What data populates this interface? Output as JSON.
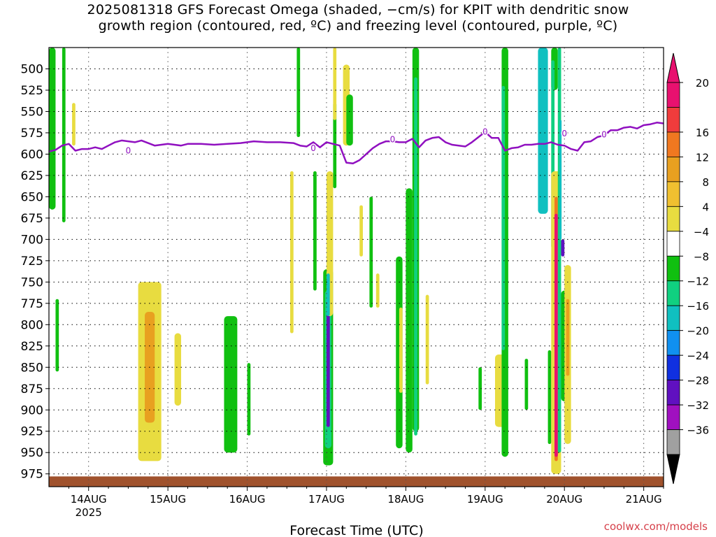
{
  "title_line1": "2025081318 GFS Forecast Omega (shaded, −cm/s) for KPIT with dendritic snow",
  "title_line2": "growth region (contoured, red, ºC) and freezing level (contoured, purple, ºC)",
  "credit": "coolwx.com/models",
  "chart_data": {
    "type": "heatmap",
    "title": "2025081318 GFS Forecast Omega (shaded, −cm/s) for KPIT with dendritic snow growth region (contoured, red, ºC) and freezing level (contoured, purple, ºC)",
    "xlabel": "Forecast Time (UTC)",
    "ylabel": "",
    "x_range_hours": [
      -6,
      180
    ],
    "y_range": [
      475,
      990
    ],
    "y_ticks": [
      500,
      525,
      550,
      575,
      600,
      625,
      650,
      675,
      700,
      725,
      750,
      775,
      800,
      825,
      850,
      875,
      900,
      925,
      950,
      975
    ],
    "x_ticks": [
      {
        "label": "14AUG",
        "sublabel": "2025",
        "hour": 6
      },
      {
        "label": "15AUG",
        "hour": 30
      },
      {
        "label": "16AUG",
        "hour": 54
      },
      {
        "label": "17AUG",
        "hour": 78
      },
      {
        "label": "18AUG",
        "hour": 102
      },
      {
        "label": "19AUG",
        "hour": 126
      },
      {
        "label": "20AUG",
        "hour": 150
      },
      {
        "label": "21AUG",
        "hour": 174
      }
    ],
    "grid": true,
    "colorbar": {
      "placement": "right",
      "labels": [
        "20",
        "16",
        "12",
        "8",
        "4",
        "−4",
        "−8",
        "−12",
        "−16",
        "−20",
        "−24",
        "−28",
        "−32",
        "−36"
      ],
      "colors": [
        "#e8116f",
        "#f03c3c",
        "#f07820",
        "#e8a020",
        "#f0c030",
        "#e8dc40",
        "#ffffff",
        "#10c010",
        "#10d080",
        "#10c0c0",
        "#1090f0",
        "#1030e0",
        "#6010c0",
        "#a010c0",
        "#a0a0a0"
      ],
      "over_color": "#e8116f",
      "under_color": "#000000"
    },
    "freezing_level": {
      "label": "0",
      "color": "#9010c0",
      "x_hours": [
        -6,
        -4,
        -2,
        0,
        2,
        4,
        6,
        8,
        10,
        12,
        14,
        16,
        18,
        20,
        22,
        24,
        26,
        28,
        30,
        32,
        34,
        36,
        40,
        44,
        48,
        52,
        56,
        60,
        64,
        68,
        70,
        72,
        74,
        76,
        78,
        80,
        82,
        84,
        86,
        88,
        90,
        92,
        94,
        96,
        98,
        100,
        102,
        104,
        106,
        108,
        110,
        112,
        114,
        116,
        118,
        120,
        122,
        124,
        126,
        128,
        130,
        132,
        134,
        136,
        138,
        140,
        142,
        144,
        146,
        148,
        150,
        152,
        154,
        156,
        158,
        160,
        162,
        164,
        166,
        168,
        170,
        172,
        174,
        176,
        178,
        180
      ],
      "y_hpa": [
        597,
        595,
        590,
        588,
        596,
        594,
        594,
        592,
        594,
        590,
        586,
        584,
        585,
        586,
        584,
        587,
        590,
        589,
        588,
        589,
        590,
        588,
        588,
        589,
        588,
        587,
        585,
        586,
        586,
        587,
        590,
        591,
        586,
        592,
        586,
        588,
        590,
        610,
        611,
        607,
        600,
        593,
        588,
        585,
        585,
        586,
        586,
        582,
        592,
        584,
        581,
        580,
        586,
        589,
        590,
        591,
        586,
        580,
        574,
        581,
        581,
        596,
        593,
        592,
        589,
        589,
        588,
        588,
        586,
        589,
        590,
        594,
        596,
        586,
        585,
        580,
        578,
        572,
        572,
        569,
        568,
        570,
        566,
        565,
        563,
        564
      ]
    },
    "omega_cells": [
      {
        "x": [
          -6,
          -4
        ],
        "y": [
          475,
          665
        ],
        "value": -6
      },
      {
        "x": [
          -2,
          -1
        ],
        "y": [
          475,
          680
        ],
        "value": -6
      },
      {
        "x": [
          -4,
          -3
        ],
        "y": [
          770,
          855
        ],
        "value": -6
      },
      {
        "x": [
          1,
          2
        ],
        "y": [
          540,
          590
        ],
        "value": 5
      },
      {
        "x": [
          21,
          28
        ],
        "y": [
          750,
          960
        ],
        "value": 5
      },
      {
        "x": [
          23,
          26
        ],
        "y": [
          785,
          915
        ],
        "value": 10
      },
      {
        "x": [
          32,
          34
        ],
        "y": [
          810,
          895
        ],
        "value": 5
      },
      {
        "x": [
          47,
          51
        ],
        "y": [
          790,
          950
        ],
        "value": -6
      },
      {
        "x": [
          54,
          55
        ],
        "y": [
          845,
          930
        ],
        "value": -6
      },
      {
        "x": [
          67,
          68
        ],
        "y": [
          620,
          810
        ],
        "value": 5
      },
      {
        "x": [
          69,
          70
        ],
        "y": [
          475,
          580
        ],
        "value": -6
      },
      {
        "x": [
          74,
          75
        ],
        "y": [
          620,
          760
        ],
        "value": -6
      },
      {
        "x": [
          77,
          80
        ],
        "y": [
          735,
          965
        ],
        "value": -6
      },
      {
        "x": [
          77.5,
          79.5
        ],
        "y": [
          760,
          945
        ],
        "value": -10
      },
      {
        "x": [
          78,
          79
        ],
        "y": [
          785,
          920
        ],
        "value": -26
      },
      {
        "x": [
          78,
          80
        ],
        "y": [
          620,
          790
        ],
        "value": 5
      },
      {
        "x": [
          78,
          79
        ],
        "y": [
          740,
          790
        ],
        "value": -14
      },
      {
        "x": [
          80,
          81
        ],
        "y": [
          540,
          640
        ],
        "value": -6
      },
      {
        "x": [
          80,
          81
        ],
        "y": [
          475,
          560
        ],
        "value": 5
      },
      {
        "x": [
          83,
          85
        ],
        "y": [
          495,
          590
        ],
        "value": 5
      },
      {
        "x": [
          84,
          86
        ],
        "y": [
          530,
          590
        ],
        "value": -6
      },
      {
        "x": [
          88,
          89
        ],
        "y": [
          660,
          720
        ],
        "value": 5
      },
      {
        "x": [
          91,
          92
        ],
        "y": [
          650,
          780
        ],
        "value": -6
      },
      {
        "x": [
          93,
          94
        ],
        "y": [
          740,
          780
        ],
        "value": 5
      },
      {
        "x": [
          99,
          101
        ],
        "y": [
          720,
          945
        ],
        "value": -6
      },
      {
        "x": [
          100,
          101
        ],
        "y": [
          780,
          880
        ],
        "value": 5
      },
      {
        "x": [
          102,
          104
        ],
        "y": [
          640,
          950
        ],
        "value": -6
      },
      {
        "x": [
          104,
          106
        ],
        "y": [
          475,
          925
        ],
        "value": -6
      },
      {
        "x": [
          104.5,
          105.5
        ],
        "y": [
          510,
          930
        ],
        "value": -10
      },
      {
        "x": [
          108,
          109
        ],
        "y": [
          765,
          870
        ],
        "value": 5
      },
      {
        "x": [
          124,
          125
        ],
        "y": [
          850,
          900
        ],
        "value": -6
      },
      {
        "x": [
          129,
          132
        ],
        "y": [
          835,
          920
        ],
        "value": 5
      },
      {
        "x": [
          131,
          133
        ],
        "y": [
          475,
          955
        ],
        "value": -6
      },
      {
        "x": [
          131,
          132
        ],
        "y": [
          520,
          830
        ],
        "value": -10
      },
      {
        "x": [
          138,
          139
        ],
        "y": [
          840,
          900
        ],
        "value": -6
      },
      {
        "x": [
          142,
          145
        ],
        "y": [
          475,
          670
        ],
        "value": -14
      },
      {
        "x": [
          146,
          148
        ],
        "y": [
          475,
          525
        ],
        "value": -6
      },
      {
        "x": [
          146,
          147
        ],
        "y": [
          490,
          710
        ],
        "value": -10
      },
      {
        "x": [
          145,
          146
        ],
        "y": [
          830,
          940
        ],
        "value": -6
      },
      {
        "x": [
          146,
          149
        ],
        "y": [
          620,
          975
        ],
        "value": 5
      },
      {
        "x": [
          147,
          148
        ],
        "y": [
          650,
          960
        ],
        "value": 12
      },
      {
        "x": [
          147,
          148
        ],
        "y": [
          670,
          955
        ],
        "value": 22
      },
      {
        "x": [
          148,
          149
        ],
        "y": [
          475,
          950
        ],
        "value": -10
      },
      {
        "x": [
          148.5,
          149
        ],
        "y": [
          560,
          700
        ],
        "value": -14
      },
      {
        "x": [
          149,
          150
        ],
        "y": [
          700,
          720
        ],
        "value": -26
      },
      {
        "x": [
          149,
          151
        ],
        "y": [
          760,
          890
        ],
        "value": -6
      },
      {
        "x": [
          150,
          152
        ],
        "y": [
          730,
          940
        ],
        "value": 5
      },
      {
        "x": [
          150.5,
          151.5
        ],
        "y": [
          770,
          860
        ],
        "value": 10
      }
    ],
    "ground": {
      "color": "#a0522d",
      "y_hpa": 978
    }
  }
}
